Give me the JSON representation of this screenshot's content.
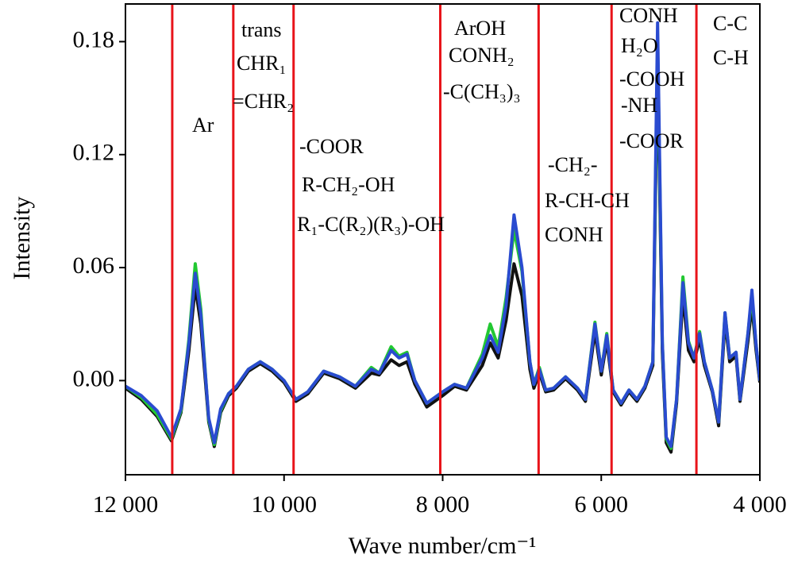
{
  "chart_data": {
    "type": "line",
    "xlabel": "Wave number/cm⁻¹",
    "ylabel": "Intensity",
    "xlim": [
      12000,
      4000
    ],
    "xticks": [
      {
        "value": 12000,
        "label": "12 000"
      },
      {
        "value": 10000,
        "label": "10 000"
      },
      {
        "value": 8000,
        "label": "8 000"
      },
      {
        "value": 6000,
        "label": "6 000"
      },
      {
        "value": 4000,
        "label": "4 000"
      }
    ],
    "ylim": [
      -0.05,
      0.2
    ],
    "yticks": [
      {
        "value": 0,
        "label": "0.00"
      },
      0.06,
      0.12,
      0.18
    ],
    "vlines": [
      11410,
      10640,
      9880,
      8030,
      6790,
      5870,
      4800
    ],
    "vline_color": "#e8141a",
    "annotations": [
      "Ar",
      "trans",
      "CHR₁",
      "=CHR₂",
      "-COOR",
      "R-CH₂-OH",
      "R₁-C(R₂)(R₃)-OH",
      "ArOH",
      "CONH₂",
      "-C(CH₃)₃",
      "-CH₂-",
      "R-CH-CH",
      "CONH",
      "CONH",
      "H₂O",
      "-COOH",
      "-NH",
      "-COOR",
      "C-C",
      "C-H"
    ],
    "x": [
      12000,
      11800,
      11600,
      11420,
      11300,
      11200,
      11120,
      11050,
      10950,
      10880,
      10800,
      10700,
      10600,
      10450,
      10300,
      10150,
      10000,
      9850,
      9700,
      9500,
      9300,
      9100,
      8900,
      8800,
      8650,
      8550,
      8450,
      8350,
      8200,
      8000,
      7850,
      7700,
      7500,
      7400,
      7300,
      7200,
      7100,
      7000,
      6900,
      6850,
      6780,
      6700,
      6600,
      6450,
      6300,
      6200,
      6080,
      6000,
      5930,
      5850,
      5750,
      5650,
      5550,
      5450,
      5350,
      5290,
      5230,
      5180,
      5120,
      5050,
      4970,
      4900,
      4830,
      4760,
      4700,
      4600,
      4520,
      4440,
      4380,
      4300,
      4250,
      4150,
      4100,
      4050,
      4000
    ],
    "series": [
      {
        "color": "#111111",
        "values": [
          -0.004,
          -0.01,
          -0.019,
          -0.032,
          -0.017,
          0.016,
          0.05,
          0.03,
          -0.022,
          -0.035,
          -0.017,
          -0.008,
          -0.004,
          0.005,
          0.009,
          0.005,
          -0.001,
          -0.011,
          -0.007,
          0.004,
          0.001,
          -0.004,
          0.004,
          0.003,
          0.011,
          0.008,
          0.01,
          -0.002,
          -0.014,
          -0.008,
          -0.003,
          -0.005,
          0.008,
          0.02,
          0.012,
          0.032,
          0.062,
          0.045,
          0.006,
          -0.004,
          0.004,
          -0.006,
          -0.005,
          0.001,
          -0.005,
          -0.011,
          0.026,
          0.003,
          0.021,
          -0.006,
          -0.013,
          -0.006,
          -0.011,
          -0.004,
          0.008,
          0.17,
          0.015,
          -0.033,
          -0.038,
          -0.012,
          0.045,
          0.016,
          0.01,
          0.022,
          0.008,
          -0.006,
          -0.024,
          0.032,
          0.01,
          0.013,
          -0.011,
          0.021,
          0.04,
          0.017,
          -0.001
        ]
      },
      {
        "color": "#22c832",
        "values": [
          -0.003,
          -0.009,
          -0.018,
          -0.031,
          -0.016,
          0.022,
          0.062,
          0.038,
          -0.021,
          -0.034,
          -0.016,
          -0.007,
          -0.003,
          0.006,
          0.01,
          0.006,
          0.0,
          -0.01,
          -0.006,
          0.005,
          0.002,
          -0.003,
          0.007,
          0.004,
          0.018,
          0.013,
          0.015,
          0.0,
          -0.012,
          -0.006,
          -0.002,
          -0.004,
          0.014,
          0.03,
          0.018,
          0.044,
          0.08,
          0.058,
          0.01,
          -0.002,
          0.007,
          -0.005,
          -0.004,
          0.002,
          -0.004,
          -0.01,
          0.031,
          0.005,
          0.025,
          -0.005,
          -0.012,
          -0.005,
          -0.01,
          -0.003,
          0.01,
          0.18,
          0.02,
          -0.031,
          -0.036,
          -0.01,
          0.055,
          0.021,
          0.012,
          0.026,
          0.01,
          -0.005,
          -0.022,
          0.036,
          0.012,
          0.015,
          -0.01,
          0.025,
          0.045,
          0.02,
          0.0
        ]
      },
      {
        "color": "#2a4bd0",
        "values": [
          -0.003,
          -0.008,
          -0.016,
          -0.03,
          -0.015,
          0.02,
          0.057,
          0.035,
          -0.02,
          -0.033,
          -0.015,
          -0.007,
          -0.003,
          0.006,
          0.01,
          0.006,
          0.0,
          -0.01,
          -0.006,
          0.005,
          0.002,
          -0.003,
          0.006,
          0.004,
          0.016,
          0.012,
          0.014,
          0.0,
          -0.012,
          -0.006,
          -0.002,
          -0.004,
          0.012,
          0.024,
          0.015,
          0.04,
          0.088,
          0.06,
          0.01,
          -0.002,
          0.006,
          -0.005,
          -0.004,
          0.002,
          -0.004,
          -0.01,
          0.03,
          0.005,
          0.024,
          -0.005,
          -0.012,
          -0.005,
          -0.01,
          -0.003,
          0.01,
          0.19,
          0.02,
          -0.03,
          -0.035,
          -0.01,
          0.052,
          0.02,
          0.012,
          0.025,
          0.01,
          -0.005,
          -0.022,
          0.036,
          0.012,
          0.015,
          -0.01,
          0.025,
          0.048,
          0.02,
          0.0
        ]
      }
    ]
  }
}
